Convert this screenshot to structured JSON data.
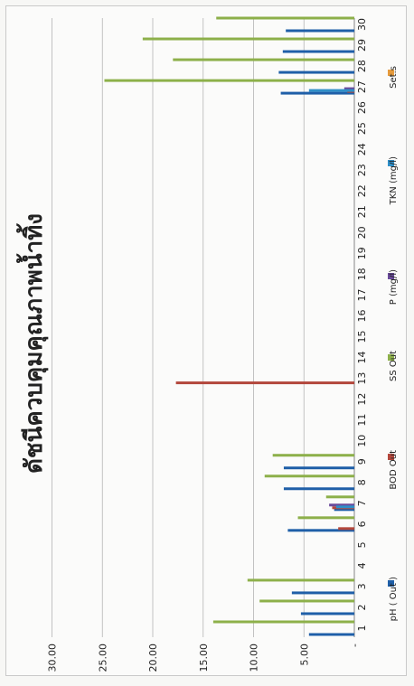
{
  "chart_data": {
    "type": "bar",
    "title": "ดัชนีควบคุมคุณภาพน้ำทิ้ง",
    "xlabel": "",
    "ylabel": "",
    "ylim": [
      0,
      30
    ],
    "y_ticks": [
      0,
      5,
      10,
      15,
      20,
      25,
      30
    ],
    "y_tick_labels": [
      "-",
      "5.00",
      "10.00",
      "15.00",
      "20.00",
      "25.00",
      "30.00"
    ],
    "categories": [
      "1",
      "2",
      "3",
      "4",
      "5",
      "6",
      "7",
      "8",
      "9",
      "10",
      "11",
      "12",
      "13",
      "14",
      "15",
      "16",
      "17",
      "18",
      "19",
      "20",
      "21",
      "22",
      "23",
      "24",
      "25",
      "26",
      "27",
      "28",
      "29",
      "30"
    ],
    "grid": true,
    "legend_position": "bottom",
    "orientation": "rotated-90-clockwise",
    "series": [
      {
        "name": "pH ( Out )",
        "color": "#1f5fa8",
        "values": [
          4.5,
          5.3,
          6.2,
          0,
          0,
          6.6,
          2.0,
          7.0,
          7.0,
          0,
          0,
          0,
          0,
          0,
          0,
          0,
          0,
          0,
          0,
          0,
          0,
          0,
          0,
          0,
          0,
          0,
          7.3,
          7.5,
          7.1,
          6.8
        ]
      },
      {
        "name": "BOD Out",
        "color": "#b3473c",
        "values": [
          0,
          0,
          0,
          0,
          0,
          1.6,
          2.2,
          0,
          0,
          0,
          0,
          0,
          17.7,
          0,
          0,
          0,
          0,
          0,
          0,
          0,
          0,
          0,
          0,
          0,
          0,
          0,
          0.7,
          0,
          0,
          0
        ]
      },
      {
        "name": "SS Out",
        "color": "#8db04a",
        "values": [
          14.0,
          9.4,
          10.6,
          0,
          0,
          5.6,
          2.8,
          8.9,
          8.1,
          0,
          0,
          0,
          0,
          0,
          0,
          0,
          0,
          0,
          0,
          0,
          0,
          0,
          0,
          0,
          0,
          0,
          24.8,
          18.0,
          21.0,
          13.7
        ]
      },
      {
        "name": "P (mg/l)",
        "color": "#6a4a9a",
        "values": [
          0,
          0,
          0,
          0,
          0,
          0,
          2.5,
          0,
          0,
          0,
          0,
          0,
          0,
          0,
          0,
          0,
          0,
          0,
          0,
          0,
          0,
          0,
          0,
          0,
          0,
          0,
          1.0,
          0,
          0,
          0
        ]
      },
      {
        "name": "TKN (mg/l)",
        "color": "#2f8fc8",
        "values": [
          0,
          0,
          0,
          0,
          0,
          0,
          1.8,
          0,
          0,
          0,
          0,
          0,
          0,
          0,
          0,
          0,
          0,
          0,
          0,
          0,
          0,
          0,
          0,
          0,
          0,
          0,
          4.5,
          0,
          0,
          0
        ]
      },
      {
        "name": "Set.s",
        "color": "#e59a3c",
        "values": [
          0,
          0,
          0,
          0,
          0,
          0,
          0,
          0,
          0,
          0,
          0,
          0,
          0,
          0,
          0,
          0,
          0,
          0,
          0,
          0,
          0,
          0,
          0,
          0,
          0,
          0,
          0,
          0,
          0,
          0
        ]
      }
    ]
  }
}
